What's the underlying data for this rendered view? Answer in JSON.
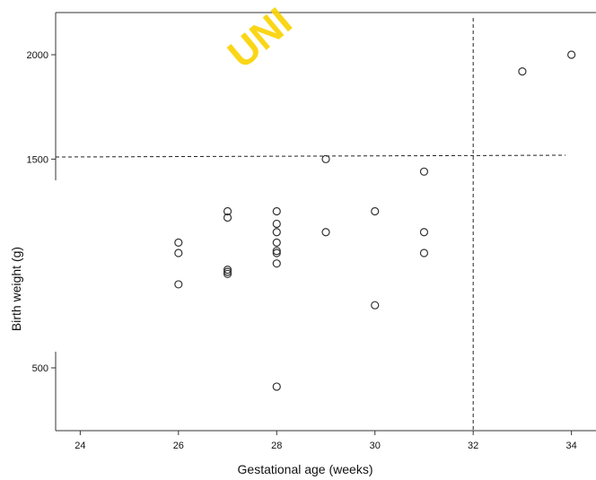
{
  "chart_data": {
    "type": "scatter",
    "title": "",
    "xlabel": "Gestational age (weeks)",
    "ylabel": "Birth weight (g)",
    "xlim": [
      23.5,
      34.5
    ],
    "ylim": [
      200,
      2200
    ],
    "xticks": [
      24,
      26,
      28,
      30,
      32,
      34
    ],
    "yticks": [
      500,
      1500,
      2000
    ],
    "grid": false,
    "legend": "none",
    "watermark_text": "UNI",
    "colors": {
      "marker_stroke": "#333333",
      "axis": "#333333",
      "reference_line": "#222222",
      "watermark": "#fad200"
    },
    "reference_lines": [
      {
        "orientation": "horizontal",
        "value": 1510
      },
      {
        "orientation": "vertical",
        "value": 32
      }
    ],
    "points": [
      {
        "x": 26,
        "y": 1100
      },
      {
        "x": 26,
        "y": 1050
      },
      {
        "x": 26,
        "y": 900
      },
      {
        "x": 27,
        "y": 1250
      },
      {
        "x": 27,
        "y": 1220
      },
      {
        "x": 27,
        "y": 970
      },
      {
        "x": 27,
        "y": 960
      },
      {
        "x": 27,
        "y": 950
      },
      {
        "x": 28,
        "y": 1250
      },
      {
        "x": 28,
        "y": 1190
      },
      {
        "x": 28,
        "y": 1150
      },
      {
        "x": 28,
        "y": 1100
      },
      {
        "x": 28,
        "y": 1060
      },
      {
        "x": 28,
        "y": 1050
      },
      {
        "x": 28,
        "y": 1000
      },
      {
        "x": 28,
        "y": 410
      },
      {
        "x": 29,
        "y": 1500
      },
      {
        "x": 29,
        "y": 1150
      },
      {
        "x": 30,
        "y": 1250
      },
      {
        "x": 30,
        "y": 800
      },
      {
        "x": 31,
        "y": 1440
      },
      {
        "x": 31,
        "y": 1150
      },
      {
        "x": 31,
        "y": 1050
      },
      {
        "x": 33,
        "y": 1920
      },
      {
        "x": 34,
        "y": 2000
      }
    ]
  }
}
